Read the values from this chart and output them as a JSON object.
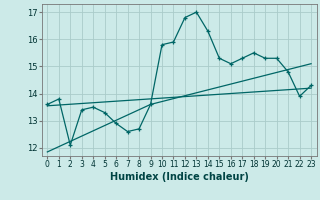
{
  "xlabel": "Humidex (Indice chaleur)",
  "bg_color": "#cceae8",
  "grid_color": "#aaccca",
  "line_color": "#006666",
  "ylim": [
    11.7,
    17.3
  ],
  "xlim": [
    -0.5,
    23.5
  ],
  "yticks": [
    12,
    13,
    14,
    15,
    16,
    17
  ],
  "xticks": [
    0,
    1,
    2,
    3,
    4,
    5,
    6,
    7,
    8,
    9,
    10,
    11,
    12,
    13,
    14,
    15,
    16,
    17,
    18,
    19,
    20,
    21,
    22,
    23
  ],
  "curve1_x": [
    0,
    1,
    2,
    3,
    4,
    5,
    6,
    7,
    8,
    9,
    10,
    11,
    12,
    13,
    14,
    15,
    16,
    17,
    18,
    19,
    20,
    21,
    22,
    23
  ],
  "curve1_y": [
    13.6,
    13.8,
    12.1,
    13.4,
    13.5,
    13.3,
    12.9,
    12.6,
    12.7,
    13.6,
    15.8,
    15.9,
    16.8,
    17.0,
    16.3,
    15.3,
    15.1,
    15.3,
    15.5,
    15.3,
    15.3,
    14.8,
    13.9,
    14.3
  ],
  "line2_x": [
    0,
    23
  ],
  "line2_y": [
    13.55,
    14.2
  ],
  "line3_x": [
    0,
    9,
    23
  ],
  "line3_y": [
    11.85,
    13.6,
    15.1
  ]
}
